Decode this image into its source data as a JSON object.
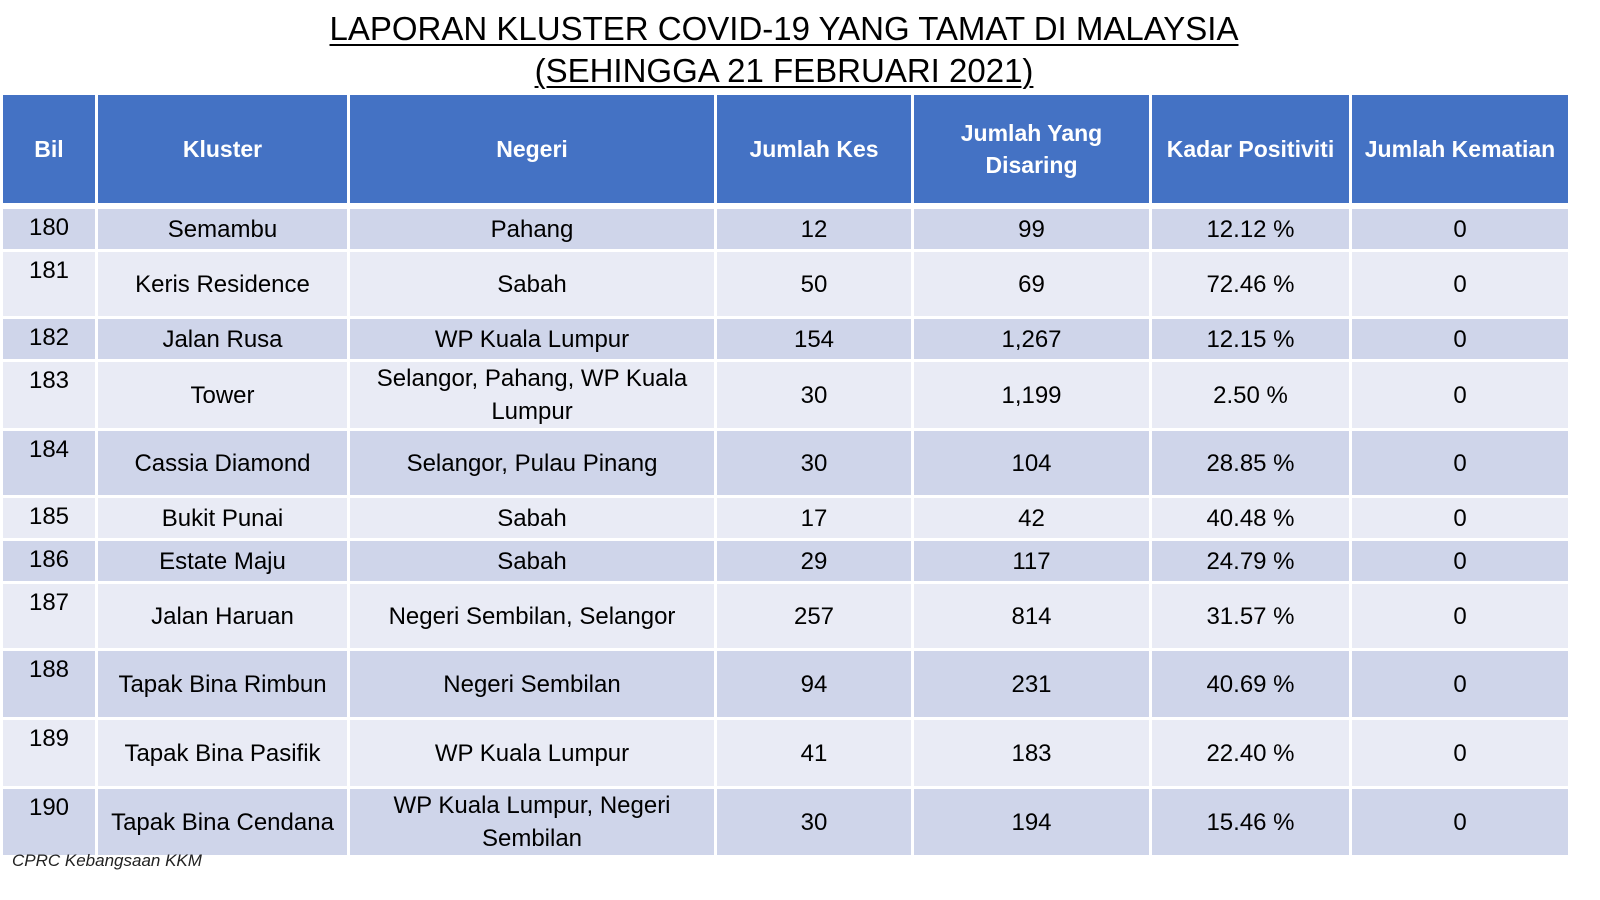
{
  "title": {
    "line1": "LAPORAN KLUSTER COVID-19 YANG TAMAT DI MALAYSIA",
    "line2": "(SEHINGGA  21 FEBRUARI 2021)"
  },
  "table": {
    "headers": {
      "bil": "Bil",
      "kluster": "Kluster",
      "negeri": "Negeri",
      "jumlah_kes": "Jumlah Kes",
      "jumlah_disaring": "Jumlah Yang Disaring",
      "kadar_positiviti": "Kadar Positiviti",
      "jumlah_kematian": "Jumlah Kematian"
    },
    "rows": [
      {
        "bil": "180",
        "kluster": "Semambu",
        "negeri": "Pahang",
        "kes": "12",
        "disaring": "99",
        "positiviti": "12.12 %",
        "kematian": "0"
      },
      {
        "bil": "181",
        "kluster": "Keris Residence",
        "negeri": "Sabah",
        "kes": "50",
        "disaring": "69",
        "positiviti": "72.46 %",
        "kematian": "0"
      },
      {
        "bil": "182",
        "kluster": "Jalan Rusa",
        "negeri": "WP Kuala Lumpur",
        "kes": "154",
        "disaring": "1,267",
        "positiviti": "12.15 %",
        "kematian": "0"
      },
      {
        "bil": "183",
        "kluster": "Tower",
        "negeri": "Selangor, Pahang, WP Kuala Lumpur",
        "kes": "30",
        "disaring": "1,199",
        "positiviti": "2.50 %",
        "kematian": "0"
      },
      {
        "bil": "184",
        "kluster": "Cassia Diamond",
        "negeri": "Selangor, Pulau Pinang",
        "kes": "30",
        "disaring": "104",
        "positiviti": "28.85 %",
        "kematian": "0"
      },
      {
        "bil": "185",
        "kluster": "Bukit Punai",
        "negeri": "Sabah",
        "kes": "17",
        "disaring": "42",
        "positiviti": "40.48 %",
        "kematian": "0"
      },
      {
        "bil": "186",
        "kluster": "Estate Maju",
        "negeri": "Sabah",
        "kes": "29",
        "disaring": "117",
        "positiviti": "24.79 %",
        "kematian": "0"
      },
      {
        "bil": "187",
        "kluster": "Jalan Haruan",
        "negeri": "Negeri Sembilan, Selangor",
        "kes": "257",
        "disaring": "814",
        "positiviti": "31.57 %",
        "kematian": "0"
      },
      {
        "bil": "188",
        "kluster": "Tapak Bina Rimbun",
        "negeri": "Negeri Sembilan",
        "kes": "94",
        "disaring": "231",
        "positiviti": "40.69 %",
        "kematian": "0"
      },
      {
        "bil": "189",
        "kluster": "Tapak Bina Pasifik",
        "negeri": "WP Kuala Lumpur",
        "kes": "41",
        "disaring": "183",
        "positiviti": "22.40 %",
        "kematian": "0"
      },
      {
        "bil": "190",
        "kluster": "Tapak Bina Cendana",
        "negeri": "WP Kuala Lumpur, Negeri Sembilan",
        "kes": "30",
        "disaring": "194",
        "positiviti": "15.46 %",
        "kematian": "0"
      }
    ]
  },
  "footer": {
    "source": "CPRC Kebangsaan KKM"
  }
}
